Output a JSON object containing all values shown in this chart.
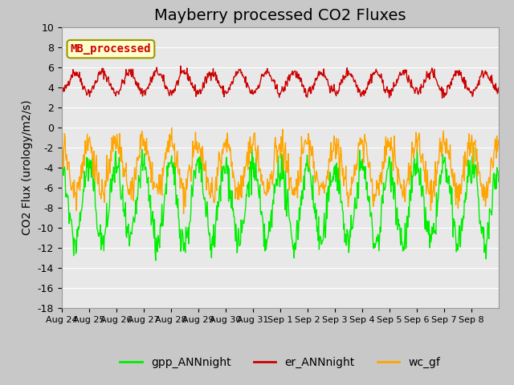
{
  "title": "Mayberry processed CO2 Fluxes",
  "ylabel": "CO2 Flux (urology/m2/s)",
  "ylim": [
    -18,
    10
  ],
  "yticks": [
    -18,
    -16,
    -14,
    -12,
    -10,
    -8,
    -6,
    -4,
    -2,
    0,
    2,
    4,
    6,
    8,
    10
  ],
  "xtick_labels": [
    "Aug 24",
    "Aug 25",
    "Aug 26",
    "Aug 27",
    "Aug 28",
    "Aug 29",
    "Aug 30",
    "Aug 31",
    "Sep 1",
    "Sep 2",
    "Sep 3",
    "Sep 4",
    "Sep 5",
    "Sep 6",
    "Sep 7",
    "Sep 8"
  ],
  "legend_labels": [
    "gpp_ANNnight",
    "er_ANNnight",
    "wc_gf"
  ],
  "legend_colors": [
    "#00ee00",
    "#cc0000",
    "#ffa500"
  ],
  "line_colors": [
    "#00ee00",
    "#cc0000",
    "#ffa500"
  ],
  "bg_color": "#e8e8e8",
  "annotation_text": "MB_processed",
  "annotation_color": "#cc0000",
  "annotation_bg": "#ffffcc",
  "title_fontsize": 14,
  "label_fontsize": 10,
  "tick_fontsize": 9
}
